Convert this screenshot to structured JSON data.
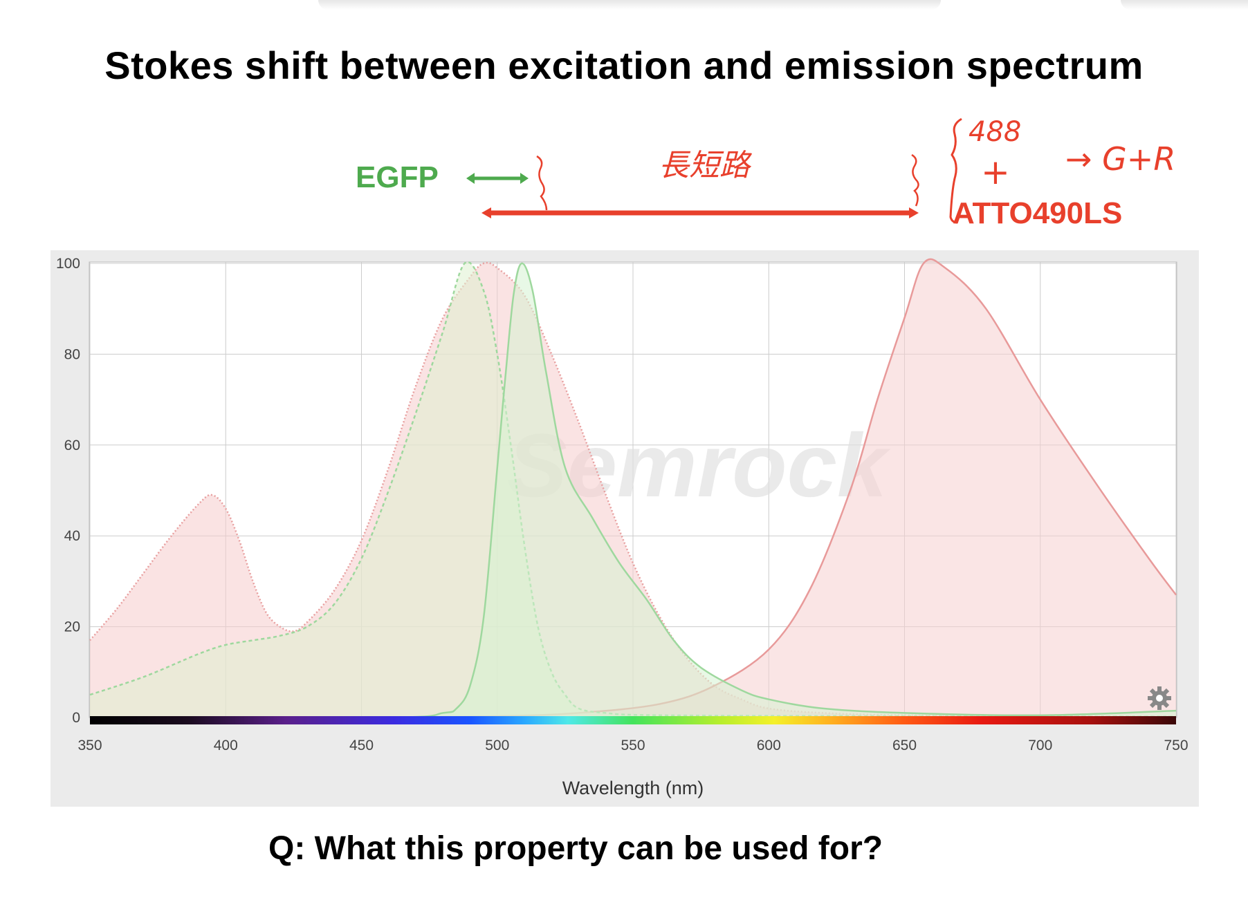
{
  "slide": {
    "title": "Stokes shift between excitation and emission spectrum",
    "question": "Q:  What this property can be used for?"
  },
  "annotations": {
    "egfp_label": "EGFP",
    "atto_label": "ATTO490LS",
    "handwritten_note_middle": "長短路",
    "handwritten_laser": "488",
    "handwritten_plus": "+",
    "handwritten_arrow_target": "→ G+R",
    "colors": {
      "egfp": "#4eaa4e",
      "atto": "#e8402c"
    }
  },
  "chart_data": {
    "type": "area",
    "title": "",
    "xlabel": "Wavelength (nm)",
    "ylabel": "",
    "xlim": [
      350,
      750
    ],
    "ylim": [
      0,
      100
    ],
    "x_ticks": [
      350,
      400,
      450,
      500,
      550,
      600,
      650,
      700,
      750
    ],
    "y_ticks": [
      0,
      20,
      40,
      60,
      80,
      100
    ],
    "grid": true,
    "watermark": "Semrock",
    "series": [
      {
        "style": "dotted",
        "color": "#e8a0a0",
        "fill": "#f5cccc",
        "points": [
          [
            350,
            17
          ],
          [
            360,
            24
          ],
          [
            370,
            32
          ],
          [
            380,
            40
          ],
          [
            390,
            47
          ],
          [
            395,
            49
          ],
          [
            400,
            46
          ],
          [
            405,
            39
          ],
          [
            410,
            30
          ],
          [
            415,
            23
          ],
          [
            420,
            20
          ],
          [
            425,
            19
          ],
          [
            430,
            21
          ],
          [
            440,
            28
          ],
          [
            450,
            39
          ],
          [
            460,
            55
          ],
          [
            470,
            73
          ],
          [
            480,
            88
          ],
          [
            490,
            97
          ],
          [
            495,
            100
          ],
          [
            500,
            99
          ],
          [
            510,
            93
          ],
          [
            520,
            80
          ],
          [
            530,
            65
          ],
          [
            540,
            49
          ],
          [
            550,
            34
          ],
          [
            560,
            22
          ],
          [
            570,
            13
          ],
          [
            580,
            7
          ],
          [
            590,
            4
          ],
          [
            600,
            2
          ],
          [
            620,
            1
          ],
          [
            650,
            0.5
          ],
          [
            700,
            0.3
          ],
          [
            750,
            0.2
          ]
        ]
      },
      {
        "style": "solid",
        "color": "#e89a9a",
        "fill": "#f5cfcf",
        "points": [
          [
            350,
            0
          ],
          [
            450,
            0
          ],
          [
            500,
            0.3
          ],
          [
            530,
            1
          ],
          [
            560,
            3
          ],
          [
            580,
            7
          ],
          [
            600,
            15
          ],
          [
            615,
            28
          ],
          [
            630,
            50
          ],
          [
            640,
            70
          ],
          [
            650,
            88
          ],
          [
            657,
            100
          ],
          [
            665,
            99
          ],
          [
            680,
            90
          ],
          [
            700,
            70
          ],
          [
            720,
            52
          ],
          [
            740,
            35
          ],
          [
            750,
            27
          ]
        ]
      },
      {
        "style": "dashed",
        "color": "#9ed89e",
        "fill": "#dff0d0",
        "points": [
          [
            350,
            5
          ],
          [
            370,
            9
          ],
          [
            390,
            14
          ],
          [
            400,
            16
          ],
          [
            410,
            17
          ],
          [
            420,
            18
          ],
          [
            430,
            20
          ],
          [
            440,
            25
          ],
          [
            450,
            35
          ],
          [
            460,
            50
          ],
          [
            470,
            67
          ],
          [
            480,
            85
          ],
          [
            488,
            100
          ],
          [
            495,
            94
          ],
          [
            500,
            80
          ],
          [
            505,
            60
          ],
          [
            510,
            38
          ],
          [
            515,
            20
          ],
          [
            520,
            10
          ],
          [
            525,
            5
          ],
          [
            530,
            2
          ],
          [
            540,
            1
          ],
          [
            560,
            0.5
          ],
          [
            650,
            0.3
          ],
          [
            750,
            0.2
          ]
        ]
      },
      {
        "style": "solid",
        "color": "#9ed89e",
        "fill": "#d6f2d2",
        "points": [
          [
            350,
            0
          ],
          [
            460,
            0
          ],
          [
            480,
            1
          ],
          [
            485,
            2
          ],
          [
            490,
            7
          ],
          [
            495,
            22
          ],
          [
            500,
            55
          ],
          [
            503,
            75
          ],
          [
            506,
            93
          ],
          [
            509,
            100
          ],
          [
            513,
            94
          ],
          [
            518,
            76
          ],
          [
            525,
            55
          ],
          [
            535,
            44
          ],
          [
            545,
            34
          ],
          [
            555,
            26
          ],
          [
            565,
            17
          ],
          [
            575,
            11
          ],
          [
            590,
            6
          ],
          [
            600,
            4
          ],
          [
            620,
            2
          ],
          [
            650,
            1
          ],
          [
            700,
            0.5
          ],
          [
            750,
            1.5
          ]
        ]
      }
    ]
  }
}
